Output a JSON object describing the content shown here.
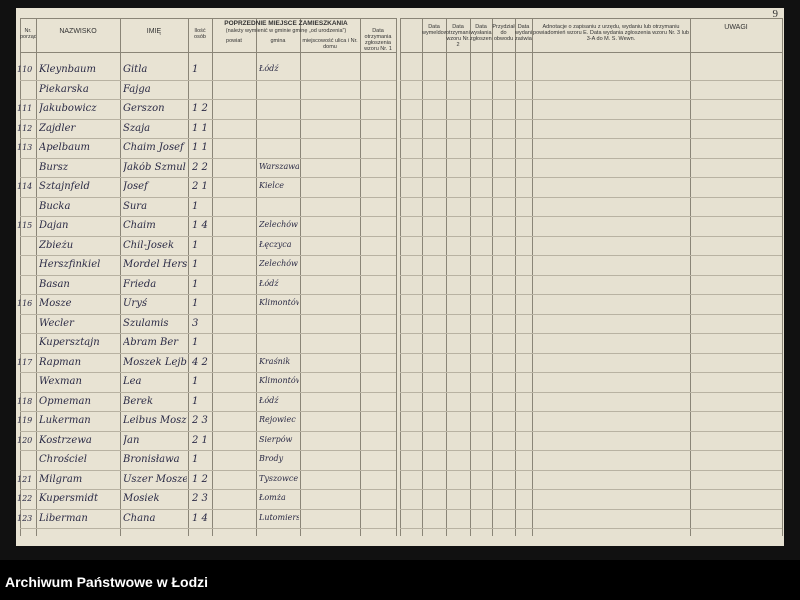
{
  "page_number": "9",
  "left_headers": {
    "nr": "Nr. porządkowy",
    "surname": "NAZWISKO",
    "name": "IMIĘ",
    "count": "Ilość osób",
    "previous": "POPRZEDNIE MIEJSCE ZAMIESZKANIA",
    "previous_note": "(należy wymienić w gminie gminę „od urodzenia”)",
    "district": "powiat",
    "commune": "gmina",
    "place": "miejscowość ulica i Nr. domu",
    "date": "Data otrzymania zgłoszenia wzoru Nr. 1"
  },
  "right_headers": {
    "c1": "Data wymeldowania",
    "c2": "Data otrzymania wzoru Nr. 2",
    "c3": "Data wysłania zgłoszenia",
    "c4": "Przydział do obwodu",
    "c5": "Data wydania zaświadczenia",
    "notes": "Adnotacje o zapisaniu z urzędu, wydaniu lub otrzymaniu powiadomień wzoru E. Data wydania zgłoszenia wzoru Nr. 3 lub 3-A do M. S. Wewn.",
    "remarks": "UWAGI"
  },
  "rows": [
    {
      "nr": "110",
      "surname": "Kleynbaum",
      "name": "Gitla",
      "count": "1",
      "commune": "Łódź"
    },
    {
      "nr": "",
      "surname": "Piekarska",
      "name": "Fajga",
      "count": "",
      "commune": ""
    },
    {
      "nr": "111",
      "surname": "Jakubowicz",
      "name": "Gerszon",
      "count": "1 2",
      "commune": ""
    },
    {
      "nr": "112",
      "surname": "Zajdler",
      "name": "Szaja",
      "count": "1 1",
      "commune": ""
    },
    {
      "nr": "113",
      "surname": "Apelbaum",
      "name": "Chaim Josef",
      "count": "1 1",
      "commune": ""
    },
    {
      "nr": "",
      "surname": "Bursz",
      "name": "Jakób Szmul",
      "count": "2 2",
      "commune": "Warszawa"
    },
    {
      "nr": "114",
      "surname": "Sztajnfeld",
      "name": "Josef",
      "count": "2 1",
      "commune": "Kielce"
    },
    {
      "nr": "",
      "surname": "Bucka",
      "name": "Sura",
      "count": "1",
      "commune": ""
    },
    {
      "nr": "115",
      "surname": "Dajan",
      "name": "Chaim",
      "count": "1 4",
      "commune": "Żelechów"
    },
    {
      "nr": "",
      "surname": "Zbieżu",
      "name": "Chil-Josek",
      "count": "1",
      "commune": "Łęczyca"
    },
    {
      "nr": "",
      "surname": "Herszfinkiel",
      "name": "Mordel Hersz",
      "count": "1",
      "commune": "Żelechów"
    },
    {
      "nr": "",
      "surname": "Basan",
      "name": "Frieda",
      "count": "1",
      "commune": "Łódź"
    },
    {
      "nr": "116",
      "surname": "Mosze",
      "name": "Uryś",
      "count": "1",
      "commune": "Klimontów"
    },
    {
      "nr": "",
      "surname": "Wecler",
      "name": "Szulamis",
      "count": "3",
      "commune": ""
    },
    {
      "nr": "",
      "surname": "Kupersztajn",
      "name": "Abram Ber",
      "count": "1",
      "commune": ""
    },
    {
      "nr": "117",
      "surname": "Rapman",
      "name": "Moszek Lejb",
      "count": "4 2",
      "commune": "Kraśnik"
    },
    {
      "nr": "",
      "surname": "Wexman",
      "name": "Lea",
      "count": "1",
      "commune": "Klimontów"
    },
    {
      "nr": "118",
      "surname": "Opmeman",
      "name": "Berek",
      "count": "1",
      "commune": "Łódź"
    },
    {
      "nr": "119",
      "surname": "Lukerman",
      "name": "Leibus Mosze",
      "count": "2 3",
      "commune": "Rejowiec"
    },
    {
      "nr": "120",
      "surname": "Kostrzewa",
      "name": "Jan",
      "count": "2 1",
      "commune": "Sierpów"
    },
    {
      "nr": "",
      "surname": "Chrościel",
      "name": "Bronisława",
      "count": "1",
      "commune": "Brody"
    },
    {
      "nr": "121",
      "surname": "Milgram",
      "name": "Uszer Mosze",
      "count": "1 2",
      "commune": "Tyszowce"
    },
    {
      "nr": "122",
      "surname": "Kupersmidt",
      "name": "Mosiek",
      "count": "2 3",
      "commune": "Łomża"
    },
    {
      "nr": "123",
      "surname": "Liberman",
      "name": "Chana",
      "count": "1 4",
      "commune": "Lutomiersk"
    }
  ],
  "footer": "Archiwum Państwowe w Łodzi"
}
